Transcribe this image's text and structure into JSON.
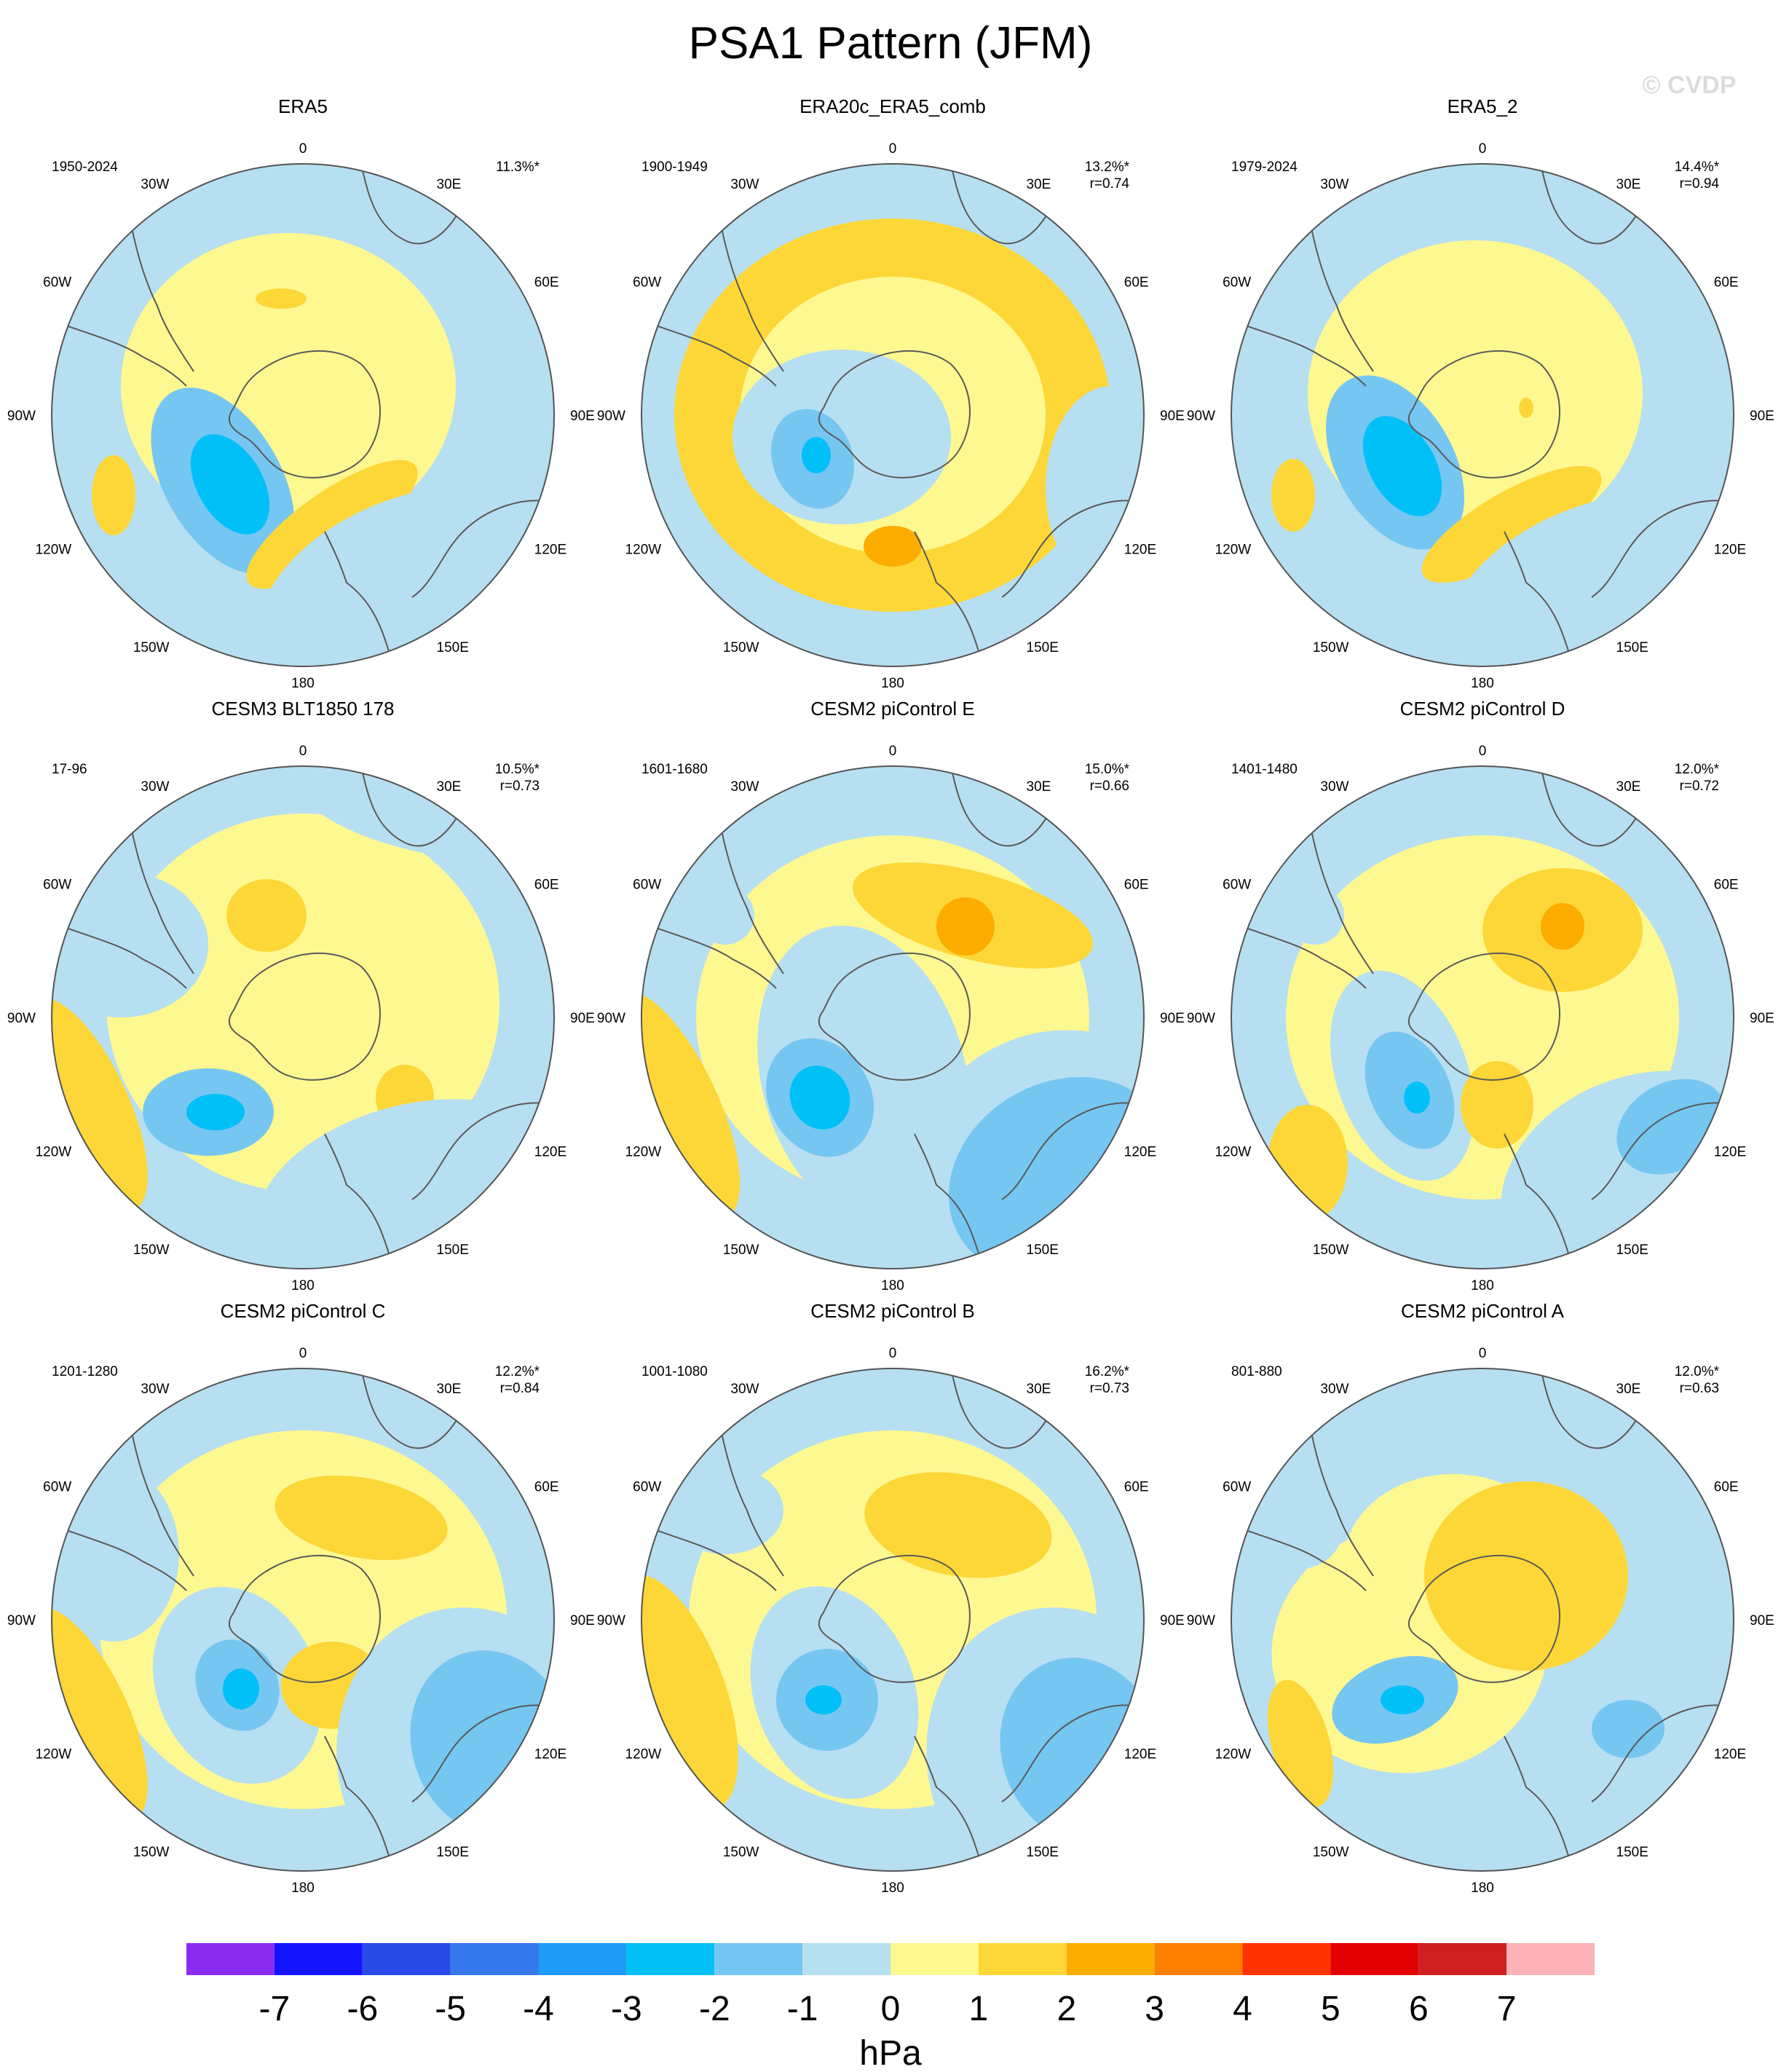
{
  "title": "PSA1 Pattern (JFM)",
  "copyright": "© CVDP",
  "colors": {
    "land_outline": "#5a5a5a",
    "circle": "#555555",
    "levels": [
      "#8b2cf0",
      "#1414ff",
      "#2a4ae8",
      "#3478ec",
      "#1d9bf5",
      "#00c0f7",
      "#76c6f2",
      "#b7dff2",
      "#fef891",
      "#fdd737",
      "#fcad00",
      "#fc7f00",
      "#fe3400",
      "#e30000",
      "#cf1f20",
      "#feb3b8"
    ]
  },
  "panel_labels": {
    "lon_labels": [
      "0",
      "30E",
      "60E",
      "90E",
      "120E",
      "150E",
      "180",
      "150W",
      "120W",
      "90W",
      "60W",
      "30W"
    ]
  },
  "chart_data": {
    "type": "filled-contour polar map",
    "units": "hPa",
    "colorbar": {
      "ticks": [
        "-7",
        "-6",
        "-5",
        "-4",
        "-3",
        "-2",
        "-1",
        "0",
        "1",
        "2",
        "3",
        "4",
        "5",
        "6",
        "7"
      ],
      "label": "hPa"
    },
    "panels": [
      {
        "name": "ERA5",
        "period": "1950-2024",
        "pct": "11.3%*",
        "r": ""
      },
      {
        "name": "ERA20c_ERA5_comb",
        "period": "1900-1949",
        "pct": "13.2%*",
        "r": "r=0.74"
      },
      {
        "name": "ERA5_2",
        "period": "1979-2024",
        "pct": "14.4%*",
        "r": "r=0.94"
      },
      {
        "name": "CESM3 BLT1850 178",
        "period": "17-96",
        "pct": "10.5%*",
        "r": "r=0.73"
      },
      {
        "name": "CESM2 piControl E",
        "period": "1601-1680",
        "pct": "15.0%*",
        "r": "r=0.66"
      },
      {
        "name": "CESM2 piControl D",
        "period": "1401-1480",
        "pct": "12.0%*",
        "r": "r=0.72"
      },
      {
        "name": "CESM2 piControl C",
        "period": "1201-1280",
        "pct": "12.2%*",
        "r": "r=0.84"
      },
      {
        "name": "CESM2 piControl B",
        "period": "1001-1080",
        "pct": "16.2%*",
        "r": "r=0.73"
      },
      {
        "name": "CESM2 piControl A",
        "period": "801-880",
        "pct": "12.0%*",
        "r": "r=0.63"
      }
    ]
  }
}
